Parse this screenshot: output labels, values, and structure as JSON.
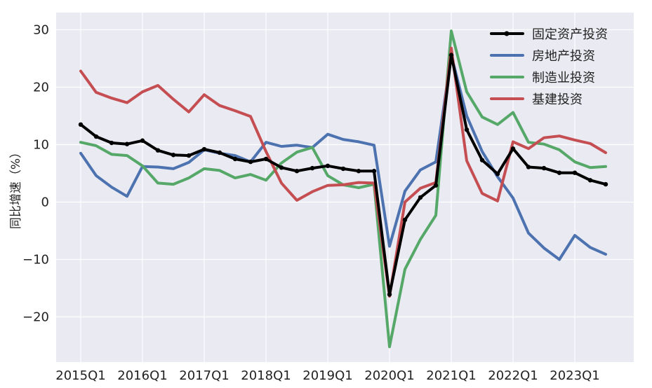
{
  "chart_data": {
    "type": "line",
    "title": "",
    "xlabel": "",
    "ylabel": "同比增速（%）",
    "ylim": [
      -28,
      33
    ],
    "yticks": [
      30,
      20,
      10,
      0,
      -10,
      -20
    ],
    "ytick_labels": [
      "30",
      "20",
      "10",
      "0",
      "−10",
      "−20"
    ],
    "xticks": [
      {
        "label": "2015Q1",
        "index": 0
      },
      {
        "label": "2016Q1",
        "index": 4
      },
      {
        "label": "2017Q1",
        "index": 8
      },
      {
        "label": "2018Q1",
        "index": 12
      },
      {
        "label": "2019Q1",
        "index": 16
      },
      {
        "label": "2020Q1",
        "index": 20
      },
      {
        "label": "2021Q1",
        "index": 24
      },
      {
        "label": "2022Q1",
        "index": 28
      },
      {
        "label": "2023Q1",
        "index": 32
      }
    ],
    "x_count": 35,
    "grid": true,
    "legend_position": "top-right",
    "series": [
      {
        "name": "固定资产投资",
        "color": "#000000",
        "markers": true,
        "values": [
          13.5,
          11.4,
          10.3,
          10.1,
          10.7,
          9.0,
          8.2,
          8.1,
          9.2,
          8.6,
          7.5,
          7.0,
          7.5,
          6.0,
          5.4,
          5.9,
          6.3,
          5.8,
          5.4,
          5.4,
          -16.1,
          -3.1,
          0.8,
          2.9,
          25.6,
          12.6,
          7.3,
          4.9,
          9.3,
          6.1,
          5.9,
          5.1,
          5.1,
          3.8,
          3.1
        ]
      },
      {
        "name": "房地产投资",
        "color": "#4c72b0",
        "markers": false,
        "values": [
          8.5,
          4.6,
          2.6,
          1.0,
          6.2,
          6.1,
          5.8,
          6.9,
          9.1,
          8.5,
          8.1,
          7.0,
          10.4,
          9.7,
          9.9,
          9.5,
          11.8,
          10.9,
          10.5,
          9.9,
          -7.7,
          1.9,
          5.6,
          7.0,
          25.6,
          15.0,
          8.8,
          4.4,
          0.7,
          -5.4,
          -8.0,
          -10.0,
          -5.8,
          -7.9,
          -9.1
        ]
      },
      {
        "name": "制造业投资",
        "color": "#55a868",
        "markers": false,
        "values": [
          10.4,
          9.8,
          8.3,
          8.1,
          6.3,
          3.3,
          3.1,
          4.2,
          5.8,
          5.5,
          4.2,
          4.8,
          3.8,
          6.8,
          8.7,
          9.5,
          4.6,
          3.0,
          2.5,
          3.1,
          -25.2,
          -11.7,
          -6.5,
          -2.3,
          29.8,
          19.2,
          14.8,
          13.5,
          15.6,
          10.4,
          10.1,
          9.1,
          7.0,
          6.0,
          6.2
        ]
      },
      {
        "name": "基建投资",
        "color": "#c44e52",
        "markers": false,
        "values": [
          22.8,
          19.1,
          18.1,
          17.3,
          19.2,
          20.3,
          17.9,
          15.7,
          18.7,
          16.8,
          15.9,
          14.9,
          8.8,
          3.3,
          0.3,
          1.8,
          2.9,
          3.0,
          3.4,
          3.3,
          -16.4,
          0.0,
          2.4,
          3.4,
          26.8,
          7.2,
          1.5,
          0.2,
          10.5,
          9.3,
          11.2,
          11.5,
          10.8,
          10.2,
          8.6
        ]
      }
    ]
  }
}
